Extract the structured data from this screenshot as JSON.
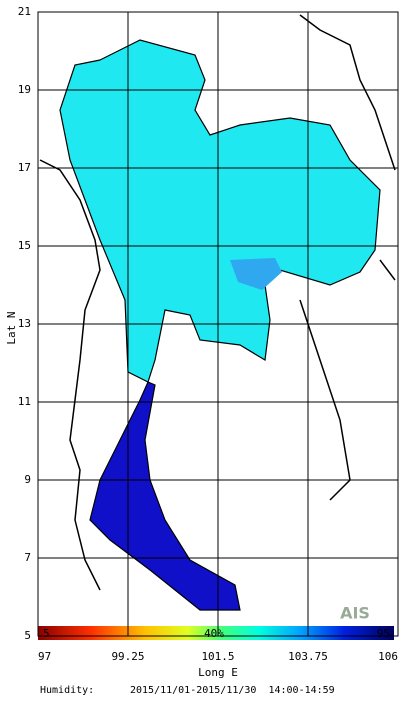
{
  "map": {
    "xlim": [
      97,
      106
    ],
    "ylim": [
      5,
      21
    ],
    "xticks": [
      97,
      99.25,
      101.5,
      103.75,
      106
    ],
    "yticks": [
      5,
      7,
      9,
      11,
      13,
      15,
      17,
      19,
      21
    ],
    "xlabel": "Long E",
    "ylabel": "Lat N",
    "colorbar": {
      "min_label": "5",
      "mid_label": "40%",
      "max_label": "95"
    },
    "logo": "AIS",
    "footer": {
      "variable": "Humidity:",
      "period": "2015/11/01-2015/11/30  14:00-14:59"
    }
  }
}
